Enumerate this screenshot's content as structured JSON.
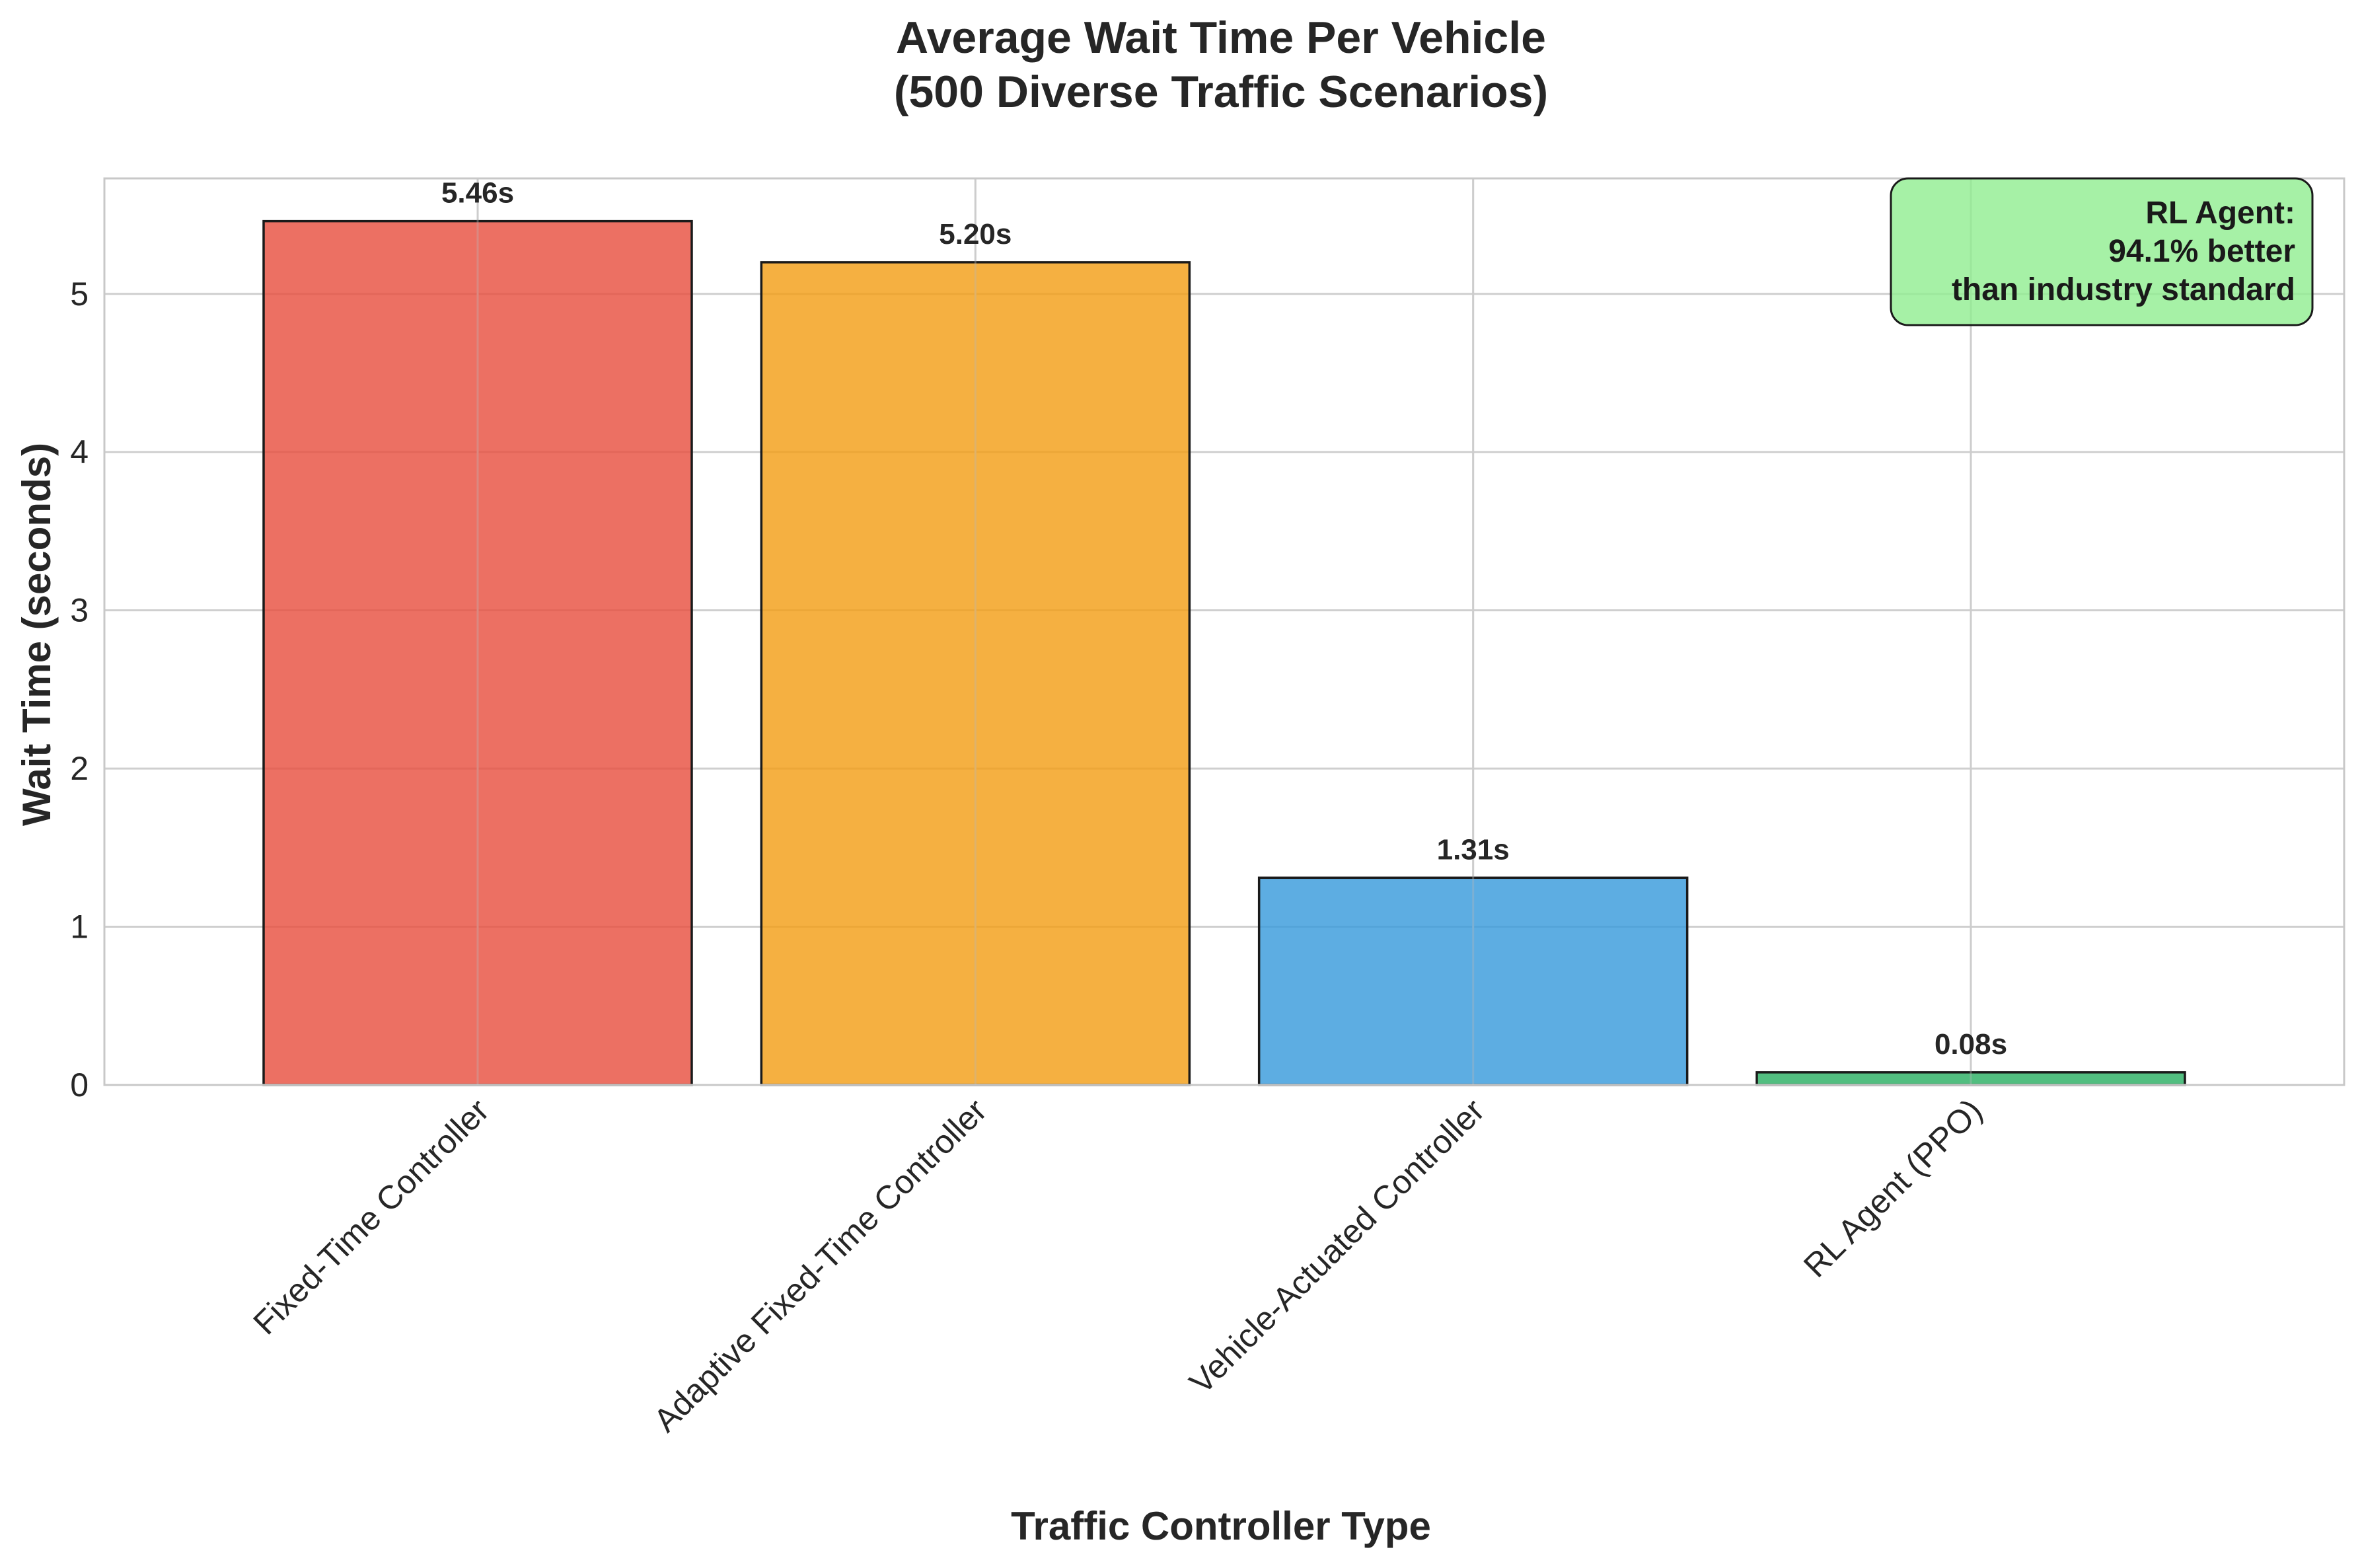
{
  "chart_data": {
    "type": "bar",
    "title": [
      "Average Wait Time Per Vehicle",
      "(500 Diverse Traffic Scenarios)"
    ],
    "xlabel": "Traffic Controller Type",
    "ylabel": "Wait Time (seconds)",
    "categories": [
      "Fixed-Time Controller",
      "Adaptive Fixed-Time Controller",
      "Vehicle-Actuated Controller",
      "RL Agent (PPO)"
    ],
    "values": [
      5.46,
      5.2,
      1.31,
      0.08
    ],
    "value_labels": [
      "5.46s",
      "5.20s",
      "1.31s",
      "0.08s"
    ],
    "colors": [
      "#e74c3c",
      "#f39c12",
      "#3498db",
      "#27ae60"
    ],
    "ylim": [
      0,
      5.73
    ],
    "yticks": [
      0,
      1,
      2,
      3,
      4,
      5
    ],
    "grid": true,
    "annotation": {
      "lines": [
        "RL Agent:",
        "94.1% better",
        "than industry standard"
      ],
      "background": "#90ee90",
      "placement": "top-right"
    }
  }
}
